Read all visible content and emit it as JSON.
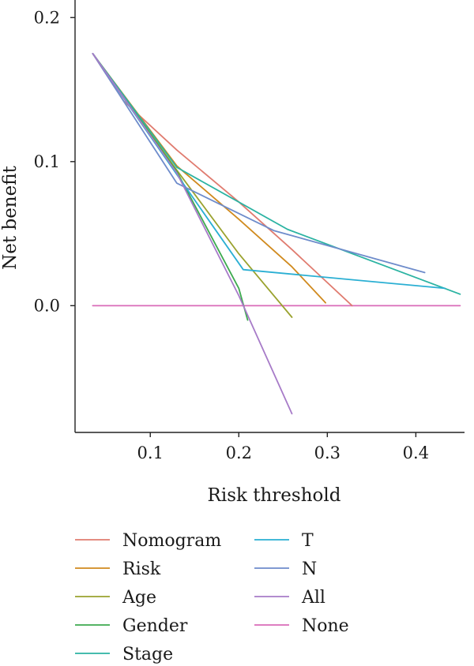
{
  "chart_data": {
    "type": "line",
    "title": "",
    "xlabel": "Risk threshold",
    "ylabel": "Net benefit",
    "xlim": [
      0.015,
      0.455
    ],
    "ylim": [
      -0.088,
      0.21
    ],
    "xticks": [
      {
        "value": 0.1,
        "label": "0.1"
      },
      {
        "value": 0.2,
        "label": "0.2"
      },
      {
        "value": 0.3,
        "label": "0.3"
      },
      {
        "value": 0.4,
        "label": "0.4"
      }
    ],
    "yticks": [
      {
        "value": 0.0,
        "label": "0.0"
      },
      {
        "value": 0.1,
        "label": "0.1"
      },
      {
        "value": 0.2,
        "label": "0.2"
      }
    ],
    "grid": false,
    "legend_position": "bottom",
    "series": [
      {
        "name": "Nomogram",
        "color": "#E07B6F",
        "points": [
          [
            0.035,
            0.175
          ],
          [
            0.07,
            0.142
          ],
          [
            0.13,
            0.108
          ],
          [
            0.2,
            0.072
          ],
          [
            0.26,
            0.039
          ],
          [
            0.328,
            0.0
          ]
        ]
      },
      {
        "name": "Risk",
        "color": "#D08A1E",
        "points": [
          [
            0.035,
            0.175
          ],
          [
            0.13,
            0.097
          ],
          [
            0.2,
            0.06
          ],
          [
            0.26,
            0.027
          ],
          [
            0.298,
            0.002
          ]
        ]
      },
      {
        "name": "Age",
        "color": "#9AA22E",
        "points": [
          [
            0.035,
            0.175
          ],
          [
            0.13,
            0.094
          ],
          [
            0.2,
            0.036
          ],
          [
            0.26,
            -0.008
          ]
        ]
      },
      {
        "name": "Gender",
        "color": "#3DAA4F",
        "points": [
          [
            0.035,
            0.175
          ],
          [
            0.13,
            0.093
          ],
          [
            0.2,
            0.012
          ],
          [
            0.21,
            -0.01
          ]
        ]
      },
      {
        "name": "Stage",
        "color": "#2BB3A2",
        "points": [
          [
            0.035,
            0.175
          ],
          [
            0.13,
            0.096
          ],
          [
            0.255,
            0.053
          ],
          [
            0.45,
            0.008
          ]
        ]
      },
      {
        "name": "T",
        "color": "#2AAFD3",
        "points": [
          [
            0.035,
            0.175
          ],
          [
            0.13,
            0.091
          ],
          [
            0.205,
            0.025
          ],
          [
            0.433,
            0.012
          ]
        ]
      },
      {
        "name": "N",
        "color": "#6E8CCB",
        "points": [
          [
            0.035,
            0.175
          ],
          [
            0.13,
            0.085
          ],
          [
            0.24,
            0.052
          ],
          [
            0.41,
            0.023
          ]
        ]
      },
      {
        "name": "All",
        "color": "#A77BC8",
        "points": [
          [
            0.035,
            0.175
          ],
          [
            0.13,
            0.092
          ],
          [
            0.2,
            0.007
          ],
          [
            0.26,
            -0.075
          ]
        ]
      },
      {
        "name": "None",
        "color": "#D96BB8",
        "points": [
          [
            0.035,
            0.0
          ],
          [
            0.45,
            0.0
          ]
        ]
      }
    ]
  }
}
